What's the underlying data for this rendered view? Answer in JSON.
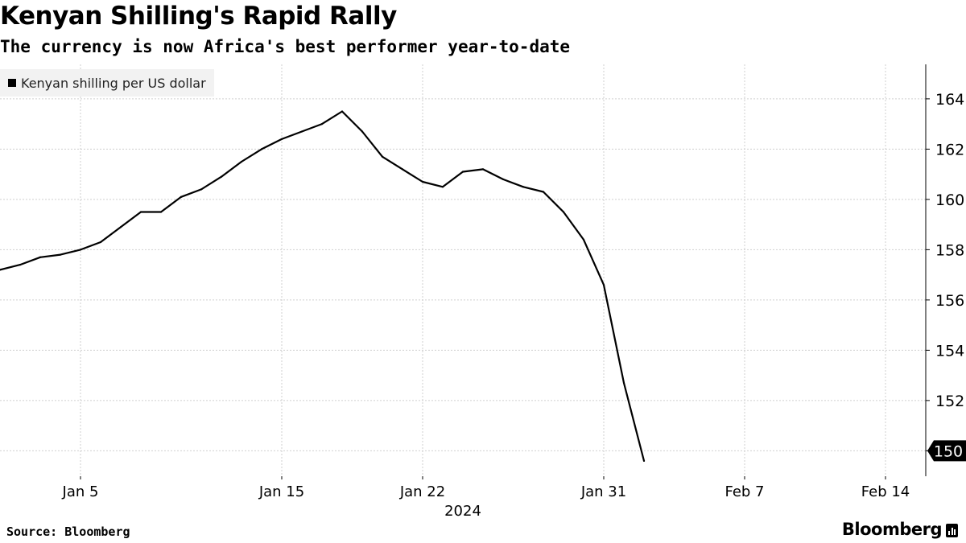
{
  "header": {
    "title": "Kenyan Shilling's Rapid Rally",
    "subtitle": "The currency is now Africa's best performer year-to-date"
  },
  "footer": {
    "source": "Source: Bloomberg",
    "brand": "Bloomberg"
  },
  "chart_data": {
    "type": "line",
    "title": "Kenyan Shilling's Rapid Rally",
    "subtitle": "The currency is now Africa's best performer year-to-date",
    "legend": [
      "Kenyan shilling per US dollar"
    ],
    "legend_position": "top-left",
    "xlabel": "2024",
    "ylabel": "",
    "y_axis_side": "right",
    "grid": true,
    "ylim": [
      149.5,
      165.5
    ],
    "xlim": [
      1,
      47
    ],
    "x_ticks": [
      {
        "label": "Jan 5",
        "day": 5
      },
      {
        "label": "Jan 15",
        "day": 15
      },
      {
        "label": "Jan 22",
        "day": 22
      },
      {
        "label": "Jan 31",
        "day": 31
      },
      {
        "label": "Feb 7",
        "day": 38
      },
      {
        "label": "Feb 14",
        "day": 45
      }
    ],
    "y_ticks": [
      150,
      152,
      154,
      156,
      158,
      160,
      162,
      164
    ],
    "x_axis_year": "2024",
    "last_value_label": "150",
    "series": [
      {
        "name": "Kenyan shilling per US dollar",
        "color": "#000000",
        "points": [
          {
            "day": 1,
            "value": 157.2
          },
          {
            "day": 2,
            "value": 157.4
          },
          {
            "day": 3,
            "value": 157.7
          },
          {
            "day": 4,
            "value": 157.8
          },
          {
            "day": 5,
            "value": 158.0
          },
          {
            "day": 6,
            "value": 158.3
          },
          {
            "day": 7,
            "value": 158.9
          },
          {
            "day": 8,
            "value": 159.5
          },
          {
            "day": 9,
            "value": 159.5
          },
          {
            "day": 10,
            "value": 160.1
          },
          {
            "day": 11,
            "value": 160.4
          },
          {
            "day": 12,
            "value": 160.9
          },
          {
            "day": 13,
            "value": 161.5
          },
          {
            "day": 14,
            "value": 162.0
          },
          {
            "day": 15,
            "value": 162.4
          },
          {
            "day": 16,
            "value": 162.7
          },
          {
            "day": 17,
            "value": 163.0
          },
          {
            "day": 18,
            "value": 163.5
          },
          {
            "day": 19,
            "value": 162.7
          },
          {
            "day": 20,
            "value": 161.7
          },
          {
            "day": 21,
            "value": 161.2
          },
          {
            "day": 22,
            "value": 160.7
          },
          {
            "day": 23,
            "value": 160.5
          },
          {
            "day": 24,
            "value": 161.1
          },
          {
            "day": 25,
            "value": 161.2
          },
          {
            "day": 26,
            "value": 160.8
          },
          {
            "day": 27,
            "value": 160.5
          },
          {
            "day": 28,
            "value": 160.3
          },
          {
            "day": 29,
            "value": 159.5
          },
          {
            "day": 30,
            "value": 158.4
          },
          {
            "day": 31,
            "value": 156.6
          },
          {
            "day": 32,
            "value": 152.7
          },
          {
            "day": 33,
            "value": 149.6
          }
        ]
      }
    ]
  }
}
